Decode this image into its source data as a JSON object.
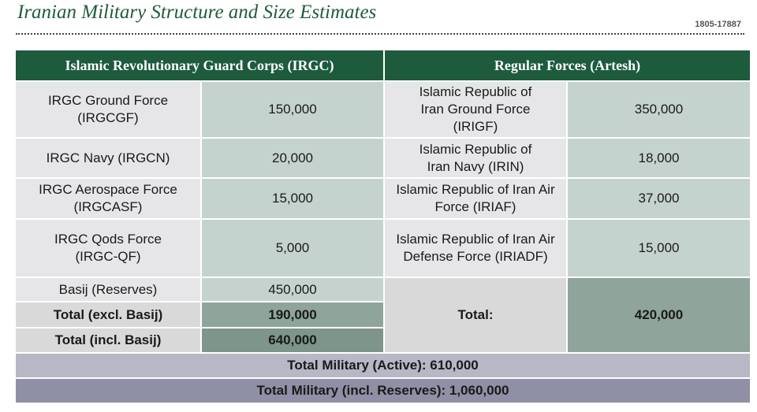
{
  "title": "Iranian Military Structure and Size Estimates",
  "code": "1805-17887",
  "headers": {
    "irgc": "Islamic Revolutionary Guard Corps (IRGC)",
    "artesh": "Regular Forces (Artesh)"
  },
  "irgc_rows": [
    {
      "label": "IRGC Ground Force (IRGCGF)",
      "value": "150,000"
    },
    {
      "label": "IRGC Navy (IRGCN)",
      "value": "20,000"
    },
    {
      "label": "IRGC Aerospace Force (IRGCASF)",
      "value": "15,000"
    },
    {
      "label": "IRGC Qods Force (IRGC-QF)",
      "value": "5,000"
    },
    {
      "label": "Basij (Reserves)",
      "value": "450,000"
    },
    {
      "label": "Total (excl. Basij)",
      "value": "190,000"
    },
    {
      "label": "Total (incl. Basij)",
      "value": "640,000"
    }
  ],
  "artesh_rows": [
    {
      "label": "Islamic Republic of Iran Ground Force (IRIGF)",
      "value": "350,000"
    },
    {
      "label": "Islamic Republic of Iran Navy (IRIN)",
      "value": "18,000"
    },
    {
      "label": "Islamic Republic of Iran Air Force (IRIAF)",
      "value": "37,000"
    },
    {
      "label": "Islamic Republic of Iran Air Defense Force (IRIADF)",
      "value": "15,000"
    }
  ],
  "artesh_total": {
    "label": "Total:",
    "value": "420,000"
  },
  "total_active": "Total Military (Active): 610,000",
  "total_reserves": "Total Military (incl. Reserves): 1,060,000"
}
